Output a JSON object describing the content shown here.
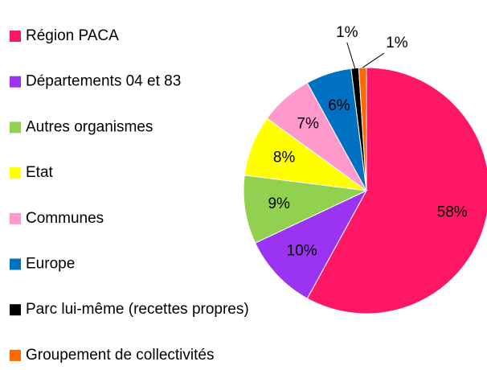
{
  "chart_data": {
    "type": "pie",
    "categories": [
      "Région PACA",
      "Départements 04 et 83",
      "Autres organismes",
      "Etat",
      "Communes",
      "Europe",
      "Parc lui-même (recettes propres)",
      "Groupement de collectivités"
    ],
    "values": [
      58,
      10,
      9,
      8,
      7,
      6,
      1,
      1
    ],
    "value_labels": [
      "58%",
      "10%",
      "9%",
      "8%",
      "7%",
      "6%",
      "1%",
      "1%"
    ],
    "colors": [
      "#ff1766",
      "#9a34f0",
      "#92d050",
      "#ffff00",
      "#ff99cc",
      "#0070c0",
      "#000000",
      "#ff6a00"
    ],
    "legend": "left"
  }
}
